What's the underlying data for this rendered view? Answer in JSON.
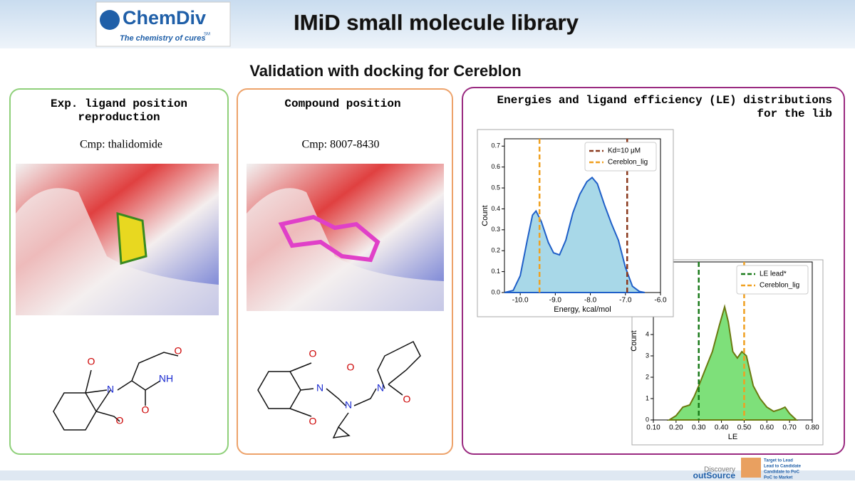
{
  "header": {
    "title": "IMiD small molecule library",
    "logo": {
      "name": "ChemDiv",
      "tagline": "The chemistry of cures",
      "mark": "SM"
    }
  },
  "subtitle": "Validation with docking for Cereblon",
  "panels": [
    {
      "title": "Exp. ligand position reproduction",
      "caption": "Cmp: thalidomide"
    },
    {
      "title": "Compound position",
      "caption": "Cmp: 8007-8430"
    },
    {
      "title": "Energies and ligand efficiency (LE) distributions for the lib"
    }
  ],
  "molecules": [
    {
      "atoms": [
        "O",
        "N",
        "O",
        "O",
        "NH",
        "O"
      ]
    },
    {
      "atoms": [
        "O",
        "N",
        "O",
        "N",
        "O",
        "N",
        "O"
      ]
    }
  ],
  "footer": {
    "brand": "Discovery",
    "brand2": "outSource",
    "steps": [
      "Target to Lead",
      "Lead to Candidate",
      "Candidate to PoC",
      "PoC to Market"
    ]
  },
  "chart_data": [
    {
      "type": "area",
      "xlabel": "Energy, kcal/mol",
      "ylabel": "Count",
      "legend": "upper right",
      "x": [
        -10.45,
        -10.2,
        -10.0,
        -9.8,
        -9.65,
        -9.55,
        -9.4,
        -9.2,
        -9.05,
        -8.88,
        -8.7,
        -8.5,
        -8.3,
        -8.1,
        -7.95,
        -7.8,
        -7.6,
        -7.4,
        -7.2,
        -7.0,
        -6.8,
        -6.6,
        -6.45
      ],
      "series": [
        {
          "color": "#1f5fc8",
          "fill": "#a8d8e8",
          "values": [
            0,
            0.01,
            0.08,
            0.25,
            0.37,
            0.39,
            0.34,
            0.24,
            0.19,
            0.18,
            0.25,
            0.38,
            0.47,
            0.53,
            0.55,
            0.52,
            0.42,
            0.33,
            0.25,
            0.12,
            0.03,
            0.005,
            0
          ]
        }
      ],
      "vlines": [
        {
          "name": "Kd=10 μM",
          "color": "#8b3a1e",
          "x": -6.95
        },
        {
          "name": "Cereblon_lig",
          "color": "#f0a020",
          "x": -9.45
        }
      ],
      "xlim": [
        -10.45,
        -6.0
      ],
      "ylim": [
        0,
        0.735
      ],
      "xticks": [
        {
          "value": -10,
          "label": "-10.0"
        },
        {
          "value": -9,
          "label": "-9.0"
        },
        {
          "value": -8,
          "label": "-8.0"
        },
        {
          "value": -7,
          "label": "-7.0"
        },
        {
          "value": -6,
          "label": "-6.0"
        }
      ],
      "yticks": [
        {
          "value": 0,
          "label": "0.0"
        },
        0.1,
        0.2,
        0.3,
        0.4,
        0.5,
        0.6,
        0.7
      ]
    },
    {
      "type": "area",
      "xlabel": "LE",
      "ylabel": "Count",
      "legend": "upper right",
      "x": [
        0.17,
        0.2,
        0.23,
        0.26,
        0.28,
        0.3,
        0.33,
        0.36,
        0.39,
        0.414,
        0.43,
        0.45,
        0.47,
        0.49,
        0.51,
        0.54,
        0.57,
        0.6,
        0.63,
        0.66,
        0.68,
        0.7,
        0.73
      ],
      "series": [
        {
          "color": "#6b7a10",
          "fill": "#7ee07a",
          "values": [
            0,
            0.2,
            0.6,
            0.7,
            1.1,
            1.6,
            2.4,
            3.2,
            4.4,
            5.3,
            4.6,
            3.2,
            2.9,
            3.2,
            3.0,
            1.6,
            1.0,
            0.6,
            0.4,
            0.5,
            0.6,
            0.3,
            0
          ]
        }
      ],
      "vlines": [
        {
          "name": "LE lead*",
          "color": "#1a7a1a",
          "x": 0.3
        },
        {
          "name": "Cereblon_lig",
          "color": "#f0a020",
          "x": 0.5
        }
      ],
      "xlim": [
        0.1,
        0.8
      ],
      "ylim": [
        0,
        7.4
      ],
      "xticks": [
        {
          "value": 0.1,
          "label": "0.10"
        },
        {
          "value": 0.2,
          "label": "0.20"
        },
        {
          "value": 0.3,
          "label": "0.30"
        },
        {
          "value": 0.4,
          "label": "0.40"
        },
        {
          "value": 0.5,
          "label": "0.50"
        },
        {
          "value": 0.6,
          "label": "0.60"
        },
        {
          "value": 0.7,
          "label": "0.70"
        },
        {
          "value": 0.8,
          "label": "0.80"
        }
      ],
      "yticks": [
        0,
        1,
        2,
        3,
        4
      ]
    }
  ]
}
